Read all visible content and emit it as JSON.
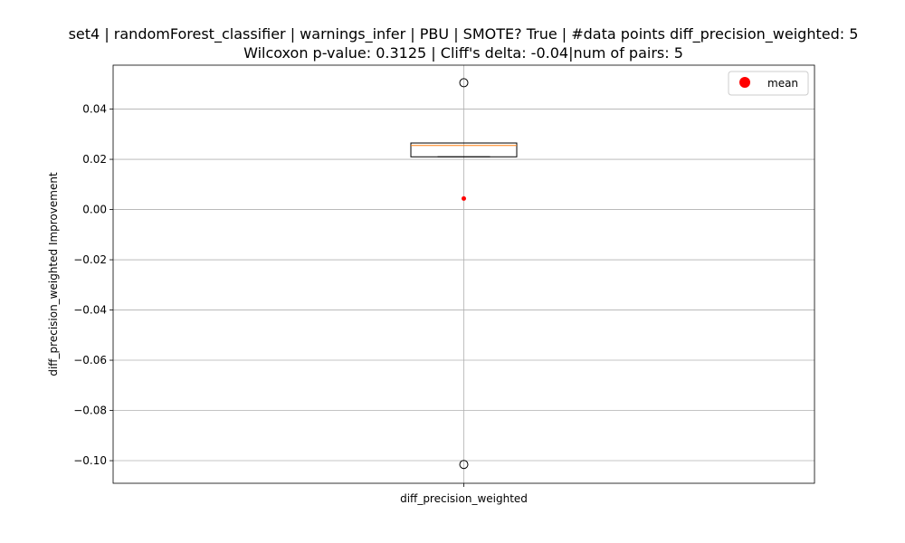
{
  "chart_data": {
    "type": "box",
    "title_line1": "set4 | randomForest_classifier | warnings_infer | PBU | SMOTE? True | #data points diff_precision_weighted: 5",
    "title_line2": "Wilcoxon p-value: 0.3125 | Cliff's delta: -0.04|num of pairs: 5",
    "xlabel": "",
    "ylabel": "diff_precision_weighted Improvement",
    "categories": [
      "diff_precision_weighted"
    ],
    "ylim": [
      -0.109,
      0.0575
    ],
    "yticks": [
      0.04,
      0.02,
      0.0,
      -0.02,
      -0.04,
      -0.06,
      -0.08,
      -0.1
    ],
    "ytick_labels": [
      "0.04",
      "0.02",
      "0.00",
      "−0.02",
      "−0.04",
      "−0.06",
      "−0.08",
      "−0.10"
    ],
    "grid": true,
    "legend": {
      "position": "top-right",
      "entries": [
        "mean"
      ]
    },
    "box": {
      "q1": 0.021,
      "median": 0.0255,
      "q3": 0.0265,
      "whisker_low": 0.021,
      "whisker_high": 0.0265,
      "outliers": [
        0.0505,
        -0.1015
      ],
      "mean": 0.0044
    },
    "colors": {
      "median": "#ff7f0e",
      "mean": "#ff0000",
      "grid": "#b0b0b0",
      "box": "#000000"
    }
  }
}
